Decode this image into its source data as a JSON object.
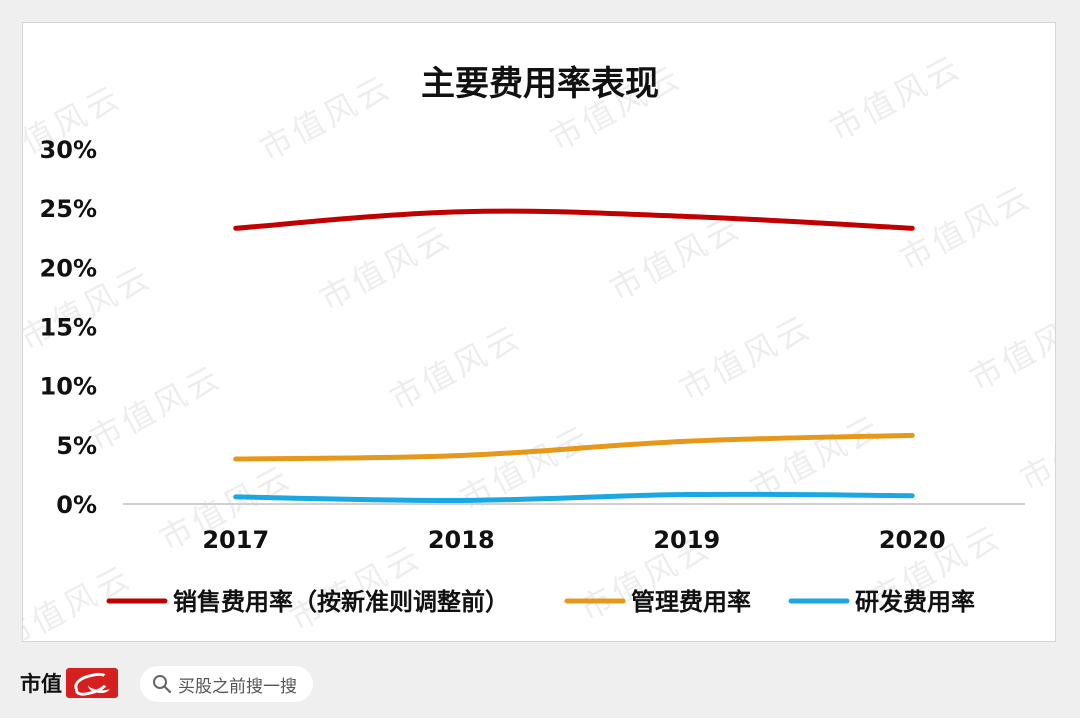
{
  "chart_data": {
    "type": "line",
    "title": "主要费用率表现",
    "categories": [
      "2017",
      "2018",
      "2019",
      "2020"
    ],
    "y_ticks": [
      "0%",
      "5%",
      "10%",
      "15%",
      "20%",
      "25%",
      "30%"
    ],
    "ylim": [
      0,
      30
    ],
    "y_unit": "%",
    "grid": false,
    "smooth": true,
    "legend": "bottom",
    "series": [
      {
        "name": "销售费用率（按新准则调整前）",
        "values": [
          23.3,
          24.7,
          24.3,
          23.3
        ],
        "color": "#c00000"
      },
      {
        "name": "管理费用率",
        "values": [
          3.8,
          4.1,
          5.3,
          5.8
        ],
        "color": "#e6981a"
      },
      {
        "name": "研发费用率",
        "values": [
          0.6,
          0.3,
          0.8,
          0.7
        ],
        "color": "#1ba7e0"
      }
    ]
  },
  "footer": {
    "brand_text": "市值",
    "brand_logo_text": "风云",
    "search_icon": "magnifier-icon",
    "search_text": "买股之前搜一搜"
  },
  "watermark": "市值风云"
}
